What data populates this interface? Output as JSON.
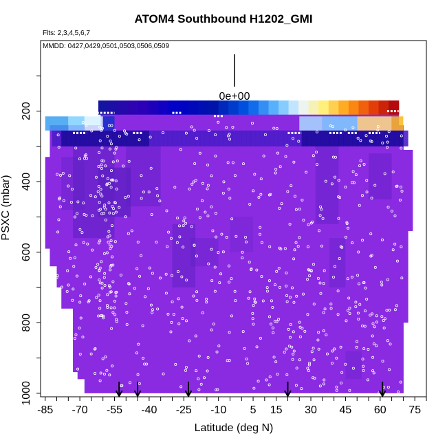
{
  "chart_data": {
    "type": "heatmap",
    "title": "ATOM4 Southbound H1202_GMI",
    "flights_text": "Flts: 2,3,4,5,6,7",
    "dates_text": "MMDD: 0427,0429,0501,0503,0506,0509",
    "xlabel": "Latitude (deg N)",
    "ylabel": "PSXC (mbar)",
    "xlim": [
      -87,
      80
    ],
    "ylim": [
      1010,
      0
    ],
    "x_ticks": [
      -85,
      -70,
      -55,
      -40,
      -25,
      -10,
      5,
      15,
      30,
      45,
      60,
      75
    ],
    "y_ticks": [
      200,
      400,
      600,
      800,
      1000
    ],
    "colorbar_label": "0e+00",
    "colorbar_levels": 30,
    "colorbar_pressure_range": [
      170,
      210
    ],
    "colorbar_lat_range": [
      -62,
      68
    ],
    "field_fill_color": "#8a2be2",
    "dark_patch_color": "#5a1fc0",
    "arrow_latitudes": [
      -53,
      -45,
      -23,
      20,
      61
    ],
    "curtain_columns": [
      {
        "lat": [
          -85,
          -83
        ],
        "p": [
          330,
          590
        ]
      },
      {
        "lat": [
          -83,
          -80
        ],
        "p": [
          240,
          640
        ]
      },
      {
        "lat": [
          -80,
          -78
        ],
        "p": [
          240,
          700
        ]
      },
      {
        "lat": [
          -78,
          -73
        ],
        "p": [
          240,
          760
        ]
      },
      {
        "lat": [
          -73,
          -71
        ],
        "p": [
          240,
          940
        ]
      },
      {
        "lat": [
          -71,
          -68
        ],
        "p": [
          240,
          960
        ]
      },
      {
        "lat": [
          -68,
          -61
        ],
        "p": [
          240,
          1000
        ]
      },
      {
        "lat": [
          -61,
          -55
        ],
        "p": [
          175,
          1000
        ]
      },
      {
        "lat": [
          -55,
          68
        ],
        "p": [
          175,
          1000
        ]
      },
      {
        "lat": [
          68,
          70
        ],
        "p": [
          240,
          1000
        ]
      },
      {
        "lat": [
          70,
          72
        ],
        "p": [
          310,
          800
        ]
      },
      {
        "lat": [
          72,
          74
        ],
        "p": [
          310,
          540
        ]
      }
    ]
  }
}
